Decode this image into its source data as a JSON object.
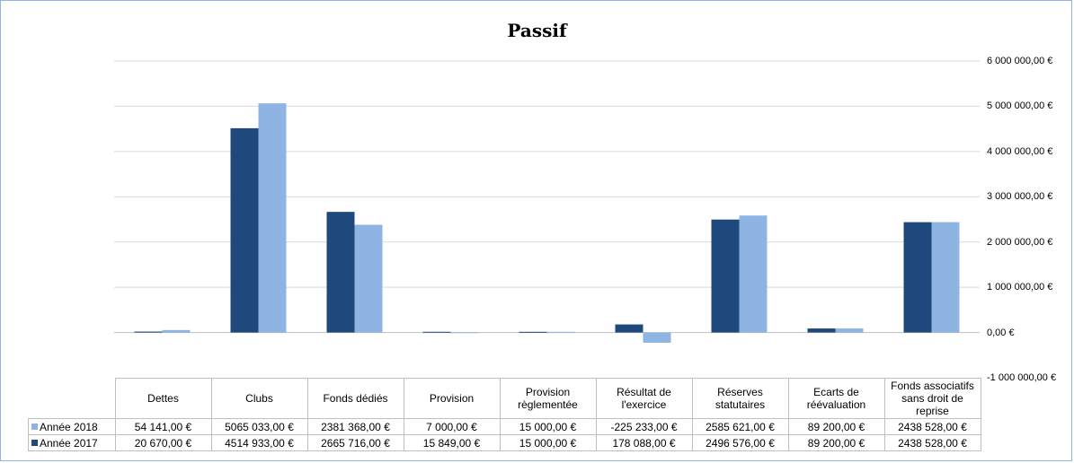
{
  "chart_data": {
    "type": "bar",
    "title": "Passif",
    "categories": [
      "Dettes",
      "Clubs",
      "Fonds dédiés",
      "Provision",
      "Provision règlementée",
      "Résultat de l'exercice",
      "Réserves statutaires",
      "Ecarts de réévaluation",
      "Fonds associatifs sans droit de reprise"
    ],
    "series": [
      {
        "name": "Année 2017",
        "color": "#1f497d",
        "values": [
          20670,
          4514933,
          2665716,
          15849,
          15000,
          178088,
          2496576,
          89200,
          2438528
        ],
        "labels": [
          "20 670,00 €",
          "4514 933,00 €",
          "2665 716,00 €",
          "15 849,00 €",
          "15 000,00 €",
          "178 088,00 €",
          "2496 576,00 €",
          "89 200,00 €",
          "2438 528,00 €"
        ]
      },
      {
        "name": "Année 2018",
        "color": "#8eb4e3",
        "values": [
          54141,
          5065033,
          2381368,
          7000,
          15000,
          -225233,
          2585621,
          89200,
          2438528
        ],
        "labels": [
          "54 141,00 €",
          "5065 033,00 €",
          "2381 368,00 €",
          "7 000,00 €",
          "15 000,00 €",
          "-225 233,00 €",
          "2585 621,00 €",
          "89 200,00 €",
          "2438 528,00 €"
        ]
      }
    ],
    "ylim": [
      -1000000,
      6000000
    ],
    "yticks": [
      6000000,
      5000000,
      4000000,
      3000000,
      2000000,
      1000000,
      0,
      -1000000
    ],
    "ytick_labels": [
      "6 000 000,00 €",
      "5 000 000,00 €",
      "4 000 000,00 €",
      "3 000 000,00 €",
      "2 000 000,00 €",
      "1 000 000,00 €",
      "0,00 €",
      "-1 000 000,00 €"
    ],
    "grid": true,
    "axis_position": "right",
    "legend": "data-table",
    "gridline_color": "#d9d9d9"
  }
}
